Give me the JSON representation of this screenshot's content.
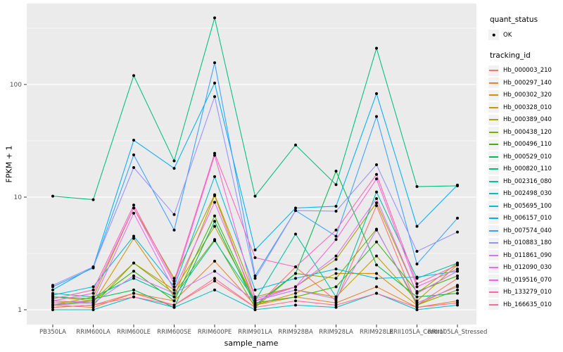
{
  "figure": {
    "background": "#FFFFFF",
    "panel_bg": "#EBEBEB",
    "grid_color": "#FFFFFF",
    "tick_color": "#333333",
    "tick_label_color": "#4D4D4D",
    "point_color": "#000000"
  },
  "axes": {
    "x": {
      "title": "sample_name"
    },
    "y": {
      "title": "FPKM + 1",
      "ticks": [
        {
          "value": 100,
          "label": "100"
        },
        {
          "value": 10,
          "label": "10"
        },
        {
          "value": 1,
          "label": "1"
        }
      ]
    }
  },
  "legend": {
    "quant_status": {
      "title": "quant_status",
      "items": [
        {
          "label": "OK",
          "marker": "black-point"
        }
      ]
    },
    "tracking_id": {
      "title": "tracking_id"
    }
  },
  "chart_data": {
    "type": "line",
    "title": "",
    "xlabel": "sample_name",
    "ylabel": "FPKM + 1",
    "yscale": "log10",
    "ylim": [
      0.74,
      520
    ],
    "grid": "white major gridlines at 1,10,100 with minor log gridlines on gray panel",
    "legend_position": "right",
    "point_marker": "small black dot at every observation (quant_status = OK)",
    "categories": [
      "PB350LA",
      "RRIM600LA",
      "RRIM600LE",
      "RRIM600SE",
      "RRIM600PE",
      "RRIM901LA",
      "RRIM928BA",
      "RRIM928LA",
      "RRIM928LE",
      "RRII105LA_Control",
      "RRII105LA_Stressed"
    ],
    "series": [
      {
        "name": "Hb_000003_210",
        "color": "#F8766D",
        "values": [
          1.05,
          1.1,
          1.4,
          1.1,
          1.8,
          1.05,
          2.4,
          1.2,
          8.4,
          1.1,
          1.9
        ]
      },
      {
        "name": "Hb_000297_140",
        "color": "#EA8331",
        "values": [
          1.1,
          1.05,
          1.4,
          1.2,
          2.7,
          1.1,
          1.3,
          1.15,
          1.6,
          1.05,
          1.2
        ]
      },
      {
        "name": "Hb_000302_320",
        "color": "#D89000",
        "values": [
          1.2,
          1.15,
          4.3,
          1.3,
          10.3,
          1.1,
          1.4,
          2.1,
          2.1,
          1.1,
          1.65
        ]
      },
      {
        "name": "Hb_000328_010",
        "color": "#C09B00",
        "values": [
          1.3,
          1.2,
          2.6,
          1.5,
          5.5,
          1.2,
          1.5,
          1.3,
          3.0,
          1.2,
          2.5
        ]
      },
      {
        "name": "Hb_000389_040",
        "color": "#A3A500",
        "values": [
          1.1,
          1.3,
          8.0,
          1.9,
          10.5,
          1.3,
          1.6,
          2.8,
          8.9,
          1.4,
          2.6
        ]
      },
      {
        "name": "Hb_000438_120",
        "color": "#7CAE00",
        "values": [
          1.05,
          1.1,
          2.6,
          1.4,
          4.2,
          1.05,
          2.1,
          1.9,
          5.2,
          1.1,
          1.5
        ]
      },
      {
        "name": "Hb_000496_110",
        "color": "#39B600",
        "values": [
          1.1,
          1.2,
          2.2,
          1.2,
          6.8,
          1.15,
          1.3,
          1.6,
          4.0,
          1.45,
          2.0
        ]
      },
      {
        "name": "Hb_000529_010",
        "color": "#00BB4E",
        "values": [
          1.3,
          1.25,
          1.5,
          1.05,
          6.1,
          1.1,
          2.1,
          17.0,
          2.5,
          1.3,
          1.4
        ]
      },
      {
        "name": "Hb_000820_110",
        "color": "#00BF7D",
        "values": [
          10.2,
          9.5,
          120,
          21,
          390,
          10.2,
          29,
          12.9,
          210,
          12.4,
          12.6
        ]
      },
      {
        "name": "Hb_002316_080",
        "color": "#00C1A3",
        "values": [
          1.4,
          1.3,
          1.9,
          1.3,
          4.1,
          1.2,
          4.7,
          1.3,
          11.1,
          1.9,
          2.6
        ]
      },
      {
        "name": "Hb_002498_030",
        "color": "#00BFC4",
        "values": [
          1.0,
          1.0,
          1.3,
          1.05,
          1.5,
          1.0,
          1.1,
          1.05,
          1.4,
          1.0,
          1.1
        ]
      },
      {
        "name": "Hb_005695_100",
        "color": "#00BAE0",
        "values": [
          1.35,
          1.6,
          4.5,
          1.6,
          15.2,
          1.5,
          1.9,
          2.3,
          1.9,
          1.95,
          2.2
        ]
      },
      {
        "name": "Hb_006157_010",
        "color": "#00B0F6",
        "values": [
          1.5,
          2.4,
          32,
          18,
          103,
          3.4,
          8.0,
          8.3,
          83,
          5.5,
          12.8
        ]
      },
      {
        "name": "Hb_007574_040",
        "color": "#35A2FF",
        "values": [
          1.6,
          2.35,
          23.7,
          5.1,
          156,
          2.0,
          7.6,
          4.5,
          52,
          2.55,
          6.5
        ]
      },
      {
        "name": "Hb_010883_180",
        "color": "#9590FF",
        "values": [
          1.65,
          2.4,
          18.3,
          7.0,
          78,
          1.9,
          7.6,
          7.5,
          19.4,
          3.3,
          4.9
        ]
      },
      {
        "name": "Hb_011861_090",
        "color": "#C77CFF",
        "values": [
          1.1,
          1.15,
          2.0,
          1.4,
          2.2,
          1.2,
          1.5,
          1.25,
          5.1,
          1.15,
          1.6
        ]
      },
      {
        "name": "Hb_012090_030",
        "color": "#E76BF3",
        "values": [
          1.15,
          1.2,
          7.2,
          1.5,
          9.0,
          1.2,
          1.6,
          3.0,
          9.7,
          1.4,
          2.2
        ]
      },
      {
        "name": "Hb_019516_070",
        "color": "#FA62DB",
        "values": [
          1.2,
          1.4,
          8.0,
          1.7,
          23.5,
          1.25,
          1.6,
          4.2,
          14.5,
          1.6,
          2.3
        ]
      },
      {
        "name": "Hb_133279_010",
        "color": "#FF62BC",
        "values": [
          1.25,
          1.5,
          8.5,
          1.8,
          24.5,
          2.9,
          2.4,
          5.1,
          15.9,
          1.7,
          2.5
        ]
      },
      {
        "name": "Hb_166635_010",
        "color": "#FF6A98",
        "values": [
          1.05,
          1.1,
          1.3,
          1.1,
          1.9,
          1.05,
          1.2,
          1.1,
          1.4,
          1.05,
          1.15
        ]
      }
    ]
  }
}
